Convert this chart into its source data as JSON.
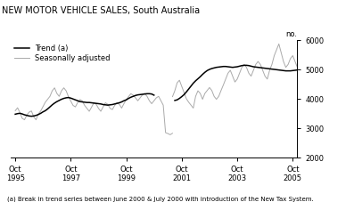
{
  "title": "NEW MOTOR VEHICLE SALES, South Australia",
  "ylabel": "no.",
  "footnote": "(a) Break in trend series between June 2000 & July 2000 with introduction of the New Tax System.",
  "legend": [
    "Trend (a)",
    "Seasonally adjusted"
  ],
  "ylim": [
    2000,
    6000
  ],
  "yticks": [
    2000,
    3000,
    4000,
    5000,
    6000
  ],
  "xtick_labels": [
    "Oct\n1995",
    "Oct\n1997",
    "Oct\n1999",
    "Oct\n2001",
    "Oct\n2003",
    "Oct\n2005"
  ],
  "xtick_positions": [
    0,
    24,
    48,
    72,
    96,
    120
  ],
  "trend_color": "#000000",
  "seasonal_color": "#aaaaaa",
  "background_color": "#ffffff",
  "trend_segment1": [
    3480,
    3500,
    3510,
    3490,
    3460,
    3440,
    3420,
    3410,
    3420,
    3440,
    3470,
    3510,
    3560,
    3600,
    3660,
    3730,
    3800,
    3860,
    3910,
    3950,
    3990,
    4020,
    4040,
    4050,
    4030,
    4000,
    3970,
    3940,
    3910,
    3900,
    3890,
    3880,
    3880,
    3870,
    3860,
    3850,
    3840,
    3830,
    3810,
    3800,
    3790,
    3800,
    3810,
    3830,
    3850,
    3870,
    3900,
    3940,
    3970,
    4020,
    4060,
    4090,
    4120,
    4140,
    4150,
    4160,
    4170,
    4180,
    4180,
    4170,
    4130
  ],
  "trend_segment2": [
    3950,
    3970,
    4020,
    4080,
    4150,
    4240,
    4340,
    4440,
    4540,
    4620,
    4690,
    4760,
    4840,
    4910,
    4970,
    5010,
    5040,
    5060,
    5080,
    5090,
    5100,
    5110,
    5110,
    5100,
    5090,
    5080,
    5090,
    5100,
    5120,
    5140,
    5150,
    5150,
    5140,
    5120,
    5100,
    5090,
    5080,
    5070,
    5060,
    5050,
    5040,
    5030,
    5020,
    5010,
    5000,
    4990,
    4980,
    4970,
    4960,
    4960,
    4960,
    4970,
    4980,
    4990,
    5000,
    5010,
    5020,
    5030,
    5040,
    5050
  ],
  "seasonal_segment1": [
    3600,
    3700,
    3540,
    3340,
    3290,
    3450,
    3550,
    3590,
    3390,
    3290,
    3490,
    3590,
    3740,
    3890,
    3990,
    4090,
    4280,
    4380,
    4190,
    4090,
    4280,
    4380,
    4280,
    4080,
    3930,
    3780,
    3730,
    3880,
    3980,
    3930,
    3780,
    3680,
    3580,
    3720,
    3870,
    3820,
    3680,
    3580,
    3730,
    3870,
    3820,
    3680,
    3640,
    3780,
    3870,
    3820,
    3690,
    3840,
    3980,
    4080,
    4180,
    4130,
    4040,
    3940,
    4040,
    4140,
    4190,
    4090,
    3940,
    3840,
    3940,
    4040,
    4090,
    3940,
    3790,
    2850,
    2820,
    2780,
    2830
  ],
  "seasonal_segment2": [
    4080,
    4280,
    4550,
    4640,
    4430,
    4220,
    4010,
    3890,
    3790,
    3690,
    4090,
    4280,
    4190,
    3990,
    4190,
    4290,
    4390,
    4290,
    4090,
    3990,
    4090,
    4290,
    4480,
    4680,
    4880,
    4980,
    4780,
    4580,
    4680,
    4880,
    5080,
    5180,
    5080,
    4880,
    4780,
    4980,
    5180,
    5280,
    5180,
    4980,
    4780,
    4680,
    4980,
    5180,
    5480,
    5680,
    5880,
    5580,
    5280,
    5080,
    5180,
    5380,
    5480,
    5280,
    5080,
    4880,
    5080,
    5180,
    5080,
    4980
  ],
  "gap_start_x": 60,
  "gap_end_x": 69,
  "seasonal_gap_start": 61,
  "seasonal_gap_end": 68,
  "xlim": [
    -2,
    122
  ]
}
